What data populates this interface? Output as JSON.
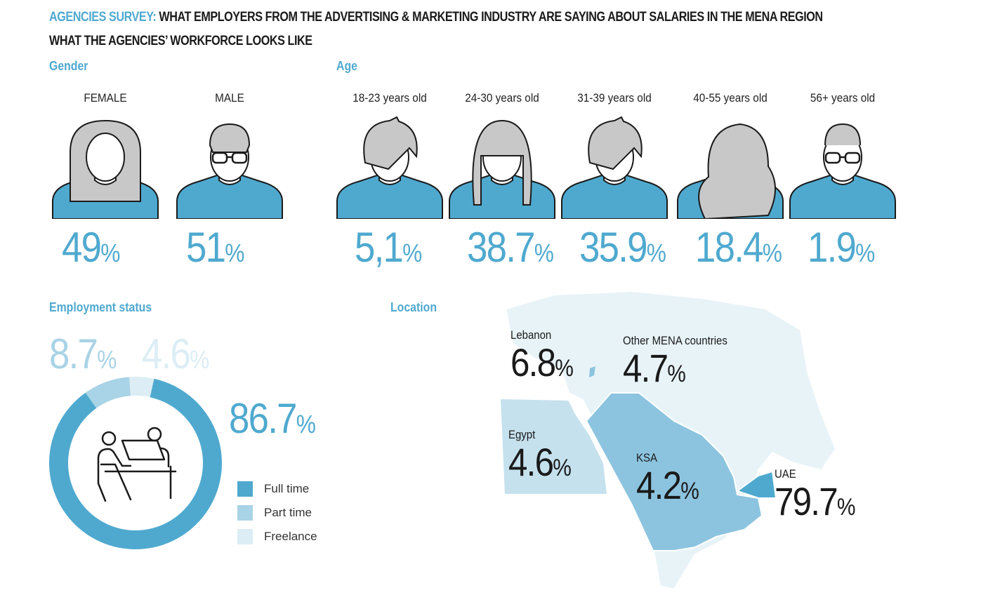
{
  "header": {
    "accent": "AGENCIES SURVEY:",
    "title": " WHAT EMPLOYERS FROM THE ADVERTISING & MARKETING INDUSTRY ARE SAYING ABOUT SALARIES IN THE MENA REGION",
    "subtitle": "WHAT THE AGENCIES’ WORKFORCE LOOKS LIKE"
  },
  "gender": {
    "title": "Gender",
    "items": [
      {
        "label": "FEMALE",
        "value": "49",
        "unit": "%"
      },
      {
        "label": "MALE",
        "value": "51",
        "unit": "%"
      }
    ]
  },
  "age": {
    "title": "Age",
    "items": [
      {
        "label": "18-23 years old",
        "value": "5,1",
        "unit": "%"
      },
      {
        "label": "24-30 years old",
        "value": "38.7",
        "unit": "%"
      },
      {
        "label": "31-39 years old",
        "value": "35.9",
        "unit": "%"
      },
      {
        "label": "40-55 years old",
        "value": "18.4",
        "unit": "%"
      },
      {
        "label": "56+ years old",
        "value": "1.9",
        "unit": "%"
      }
    ]
  },
  "employment": {
    "title": "Employment status"
  },
  "location": {
    "title": "Location",
    "items": [
      {
        "label": "Lebanon",
        "value": "6.8",
        "unit": "%"
      },
      {
        "label": "Other MENA countries",
        "value": "4.7",
        "unit": "%"
      },
      {
        "label": "Egypt",
        "value": "4.6",
        "unit": "%"
      },
      {
        "label": "KSA",
        "value": "4.2",
        "unit": "%"
      },
      {
        "label": "UAE",
        "value": "79.7",
        "unit": "%"
      }
    ]
  },
  "colors": {
    "accent": "#4fa9cf",
    "part": "#a9d3e6",
    "free": "#dcedf5",
    "map_base": "#e8f3f8",
    "map_egypt": "#c5e1ee",
    "map_ksa": "#8cc4df",
    "map_uae": "#4fa9cf"
  },
  "chart_data": {
    "type": "pie",
    "donut": true,
    "title": "Employment status",
    "categories": [
      "Full time",
      "Part time",
      "Freelance"
    ],
    "values": [
      86.7,
      8.7,
      4.6
    ],
    "labels": [
      "86.7",
      "8.7",
      "4.6"
    ],
    "unit": "%",
    "colors": [
      "#4fa9cf",
      "#a9d3e6",
      "#dcedf5"
    ],
    "legend": "bottom-right"
  }
}
